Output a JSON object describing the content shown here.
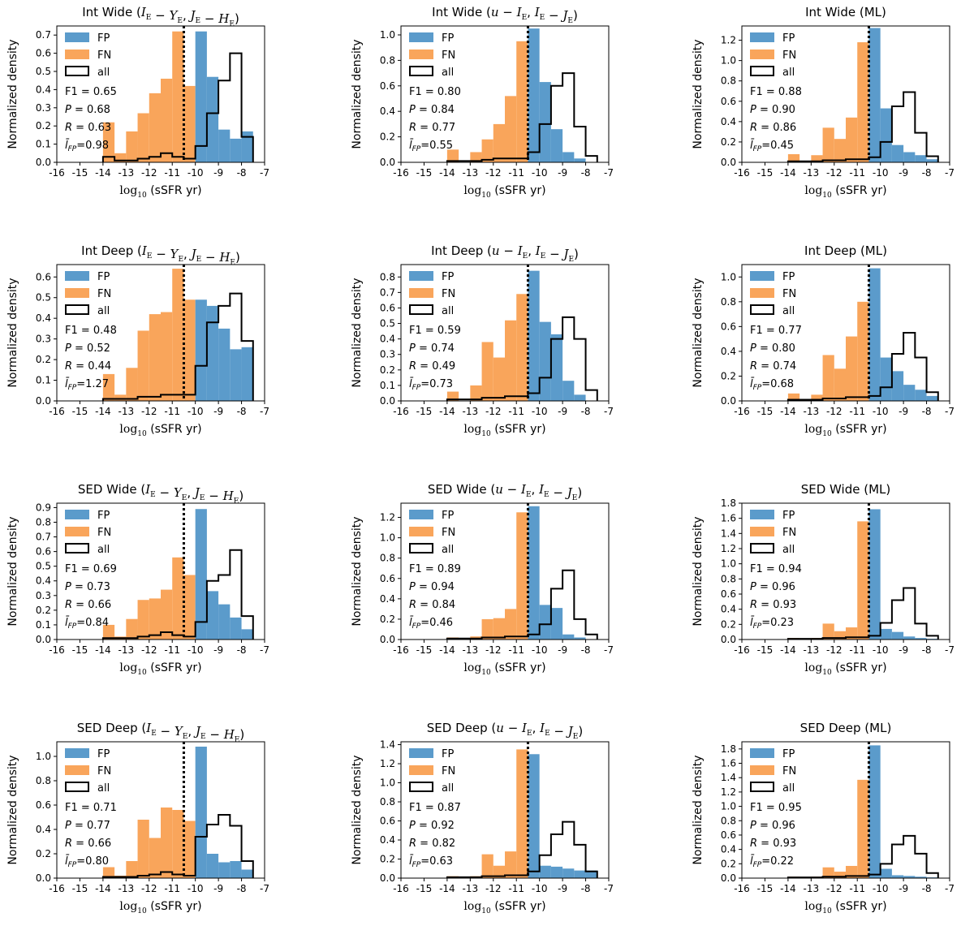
{
  "figure": {
    "shared_xlabel_prefix": "log",
    "shared_xlabel_sub": "10",
    "shared_xlabel_rest": "(sSFR yr)",
    "shared_ylabel": "Normalized density",
    "threshold_label": "log10 sSFR = -10.5",
    "legend_labels": {
      "fp": "FP",
      "fn": "FN",
      "all": "all"
    },
    "metric_labels": {
      "f1": "F1",
      "p": "P",
      "r": "R",
      "fp": "l̄_FP"
    }
  },
  "colors": {
    "fp": "#5b9bcb",
    "fn": "#f9a55b",
    "all": "#000000",
    "threshold": "#000000"
  },
  "chart_data": [
    {
      "type": "bar",
      "title_prefix": "Int Wide",
      "title_math": "(I_E − Y_E, J_E − H_E)",
      "xlim": [
        -16,
        -7
      ],
      "ylim": [
        0,
        0.75
      ],
      "yticks": [
        0,
        0.1,
        0.2,
        0.3,
        0.4,
        0.5,
        0.6,
        0.7
      ],
      "xticks": [
        -16,
        -15,
        -14,
        -13,
        -12,
        -11,
        -10,
        -9,
        -8,
        -7
      ],
      "bin_edges": [
        -14,
        -13.5,
        -13,
        -12.5,
        -12,
        -11.5,
        -11,
        -10.5,
        -10,
        -9.5,
        -9,
        -8.5,
        -8,
        -7.5
      ],
      "FN": [
        0.22,
        0.05,
        0.17,
        0.27,
        0.38,
        0.46,
        0.72,
        0.42,
        0,
        0,
        0,
        0,
        0
      ],
      "FP": [
        0,
        0,
        0,
        0,
        0,
        0,
        0,
        0,
        0.72,
        0.47,
        0.18,
        0.13,
        0.17
      ],
      "all": [
        0.03,
        0.01,
        0.01,
        0.02,
        0.03,
        0.05,
        0.03,
        0.02,
        0.09,
        0.27,
        0.45,
        0.6,
        0.14
      ],
      "threshold": -10.5,
      "metrics": {
        "F1": "0.65",
        "P": "0.68",
        "R": "0.63",
        "lFP": "0.98"
      }
    },
    {
      "type": "bar",
      "title_prefix": "Int Wide",
      "title_math": "(u − I_E, I_E − J_E)",
      "xlim": [
        -16,
        -7
      ],
      "ylim": [
        0,
        1.07
      ],
      "yticks": [
        0,
        0.2,
        0.4,
        0.6,
        0.8,
        1.0
      ],
      "xticks": [
        -16,
        -15,
        -14,
        -13,
        -12,
        -11,
        -10,
        -9,
        -8,
        -7
      ],
      "bin_edges": [
        -14,
        -13.5,
        -13,
        -12.5,
        -12,
        -11.5,
        -11,
        -10.5,
        -10,
        -9.5,
        -9,
        -8.5,
        -8,
        -7.5
      ],
      "FN": [
        0.1,
        0,
        0.08,
        0.18,
        0.3,
        0.52,
        0.95,
        0,
        0,
        0,
        0,
        0,
        0
      ],
      "FP": [
        0,
        0,
        0,
        0,
        0,
        0,
        0,
        1.05,
        0.63,
        0.26,
        0.08,
        0.03,
        0
      ],
      "all": [
        0.01,
        0.01,
        0.01,
        0.02,
        0.03,
        0.03,
        0.03,
        0.08,
        0.3,
        0.6,
        0.7,
        0.28,
        0.05
      ],
      "threshold": -10.5,
      "metrics": {
        "F1": "0.80",
        "P": "0.84",
        "R": "0.77",
        "lFP": "0.55"
      }
    },
    {
      "type": "bar",
      "title_prefix": "Int Wide",
      "title_math": "(ML)",
      "xlim": [
        -16,
        -7
      ],
      "ylim": [
        0,
        1.34
      ],
      "yticks": [
        0,
        0.2,
        0.4,
        0.6,
        0.8,
        1.0,
        1.2
      ],
      "xticks": [
        -16,
        -15,
        -14,
        -13,
        -12,
        -11,
        -10,
        -9,
        -8,
        -7
      ],
      "bin_edges": [
        -14,
        -13.5,
        -13,
        -12.5,
        -12,
        -11.5,
        -11,
        -10.5,
        -10,
        -9.5,
        -9,
        -8.5,
        -8,
        -7.5
      ],
      "FN": [
        0.08,
        0,
        0.07,
        0.34,
        0.23,
        0.44,
        1.18,
        0,
        0,
        0,
        0,
        0,
        0
      ],
      "FP": [
        0,
        0,
        0,
        0,
        0,
        0,
        0,
        1.32,
        0.53,
        0.17,
        0.1,
        0.07,
        0.03
      ],
      "all": [
        0.01,
        0.01,
        0.01,
        0.02,
        0.02,
        0.03,
        0.03,
        0.05,
        0.2,
        0.55,
        0.69,
        0.29,
        0.06
      ],
      "threshold": -10.5,
      "metrics": {
        "F1": "0.88",
        "P": "0.90",
        "R": "0.86",
        "lFP": "0.45"
      }
    },
    {
      "type": "bar",
      "title_prefix": "Int Deep",
      "title_math": "(I_E − Y_E, J_E − H_E)",
      "xlim": [
        -16,
        -7
      ],
      "ylim": [
        0,
        0.66
      ],
      "yticks": [
        0,
        0.1,
        0.2,
        0.3,
        0.4,
        0.5,
        0.6
      ],
      "xticks": [
        -16,
        -15,
        -14,
        -13,
        -12,
        -11,
        -10,
        -9,
        -8,
        -7
      ],
      "bin_edges": [
        -14,
        -13.5,
        -13,
        -12.5,
        -12,
        -11.5,
        -11,
        -10.5,
        -10,
        -9.5,
        -9,
        -8.5,
        -8,
        -7.5
      ],
      "FN": [
        0.13,
        0.03,
        0.16,
        0.34,
        0.42,
        0.43,
        0.64,
        0.49,
        0,
        0,
        0,
        0,
        0
      ],
      "FP": [
        0,
        0,
        0,
        0,
        0,
        0,
        0,
        0,
        0.49,
        0.46,
        0.35,
        0.25,
        0.26
      ],
      "all": [
        0.01,
        0.01,
        0.01,
        0.02,
        0.02,
        0.03,
        0.03,
        0.03,
        0.17,
        0.38,
        0.46,
        0.52,
        0.29
      ],
      "threshold": -10.5,
      "metrics": {
        "F1": "0.48",
        "P": "0.52",
        "R": "0.44",
        "lFP": "1.27"
      }
    },
    {
      "type": "bar",
      "title_prefix": "Int Deep",
      "title_math": "(u − I_E, I_E − J_E)",
      "xlim": [
        -16,
        -7
      ],
      "ylim": [
        0,
        0.88
      ],
      "yticks": [
        0,
        0.1,
        0.2,
        0.3,
        0.4,
        0.5,
        0.6,
        0.7,
        0.8
      ],
      "xticks": [
        -16,
        -15,
        -14,
        -13,
        -12,
        -11,
        -10,
        -9,
        -8,
        -7
      ],
      "bin_edges": [
        -14,
        -13.5,
        -13,
        -12.5,
        -12,
        -11.5,
        -11,
        -10.5,
        -10,
        -9.5,
        -9,
        -8.5,
        -8,
        -7.5
      ],
      "FN": [
        0.06,
        0,
        0.1,
        0.38,
        0.28,
        0.52,
        0.69,
        0,
        0,
        0,
        0,
        0,
        0
      ],
      "FP": [
        0,
        0,
        0,
        0,
        0,
        0,
        0,
        0.84,
        0.51,
        0.43,
        0.13,
        0.04,
        0
      ],
      "all": [
        0.01,
        0.01,
        0.01,
        0.02,
        0.02,
        0.03,
        0.03,
        0.05,
        0.15,
        0.4,
        0.54,
        0.4,
        0.07
      ],
      "threshold": -10.5,
      "metrics": {
        "F1": "0.59",
        "P": "0.74",
        "R": "0.49",
        "lFP": "0.73"
      }
    },
    {
      "type": "bar",
      "title_prefix": "Int Deep",
      "title_math": "(ML)",
      "xlim": [
        -16,
        -7
      ],
      "ylim": [
        0,
        1.1
      ],
      "yticks": [
        0,
        0.2,
        0.4,
        0.6,
        0.8,
        1.0
      ],
      "xticks": [
        -16,
        -15,
        -14,
        -13,
        -12,
        -11,
        -10,
        -9,
        -8,
        -7
      ],
      "bin_edges": [
        -14,
        -13.5,
        -13,
        -12.5,
        -12,
        -11.5,
        -11,
        -10.5,
        -10,
        -9.5,
        -9,
        -8.5,
        -8,
        -7.5
      ],
      "FN": [
        0.06,
        0,
        0.05,
        0.37,
        0.26,
        0.52,
        0.8,
        0,
        0,
        0,
        0,
        0,
        0
      ],
      "FP": [
        0,
        0,
        0,
        0,
        0,
        0,
        0,
        1.07,
        0.35,
        0.24,
        0.13,
        0.09,
        0.04
      ],
      "all": [
        0.01,
        0.01,
        0.01,
        0.02,
        0.02,
        0.03,
        0.03,
        0.04,
        0.11,
        0.38,
        0.55,
        0.35,
        0.07
      ],
      "threshold": -10.5,
      "metrics": {
        "F1": "0.77",
        "P": "0.80",
        "R": "0.74",
        "lFP": "0.68"
      }
    },
    {
      "type": "bar",
      "title_prefix": "SED Wide",
      "title_math": "(I_E − Y_E, J_E − H_E)",
      "xlim": [
        -16,
        -7
      ],
      "ylim": [
        0,
        0.93
      ],
      "yticks": [
        0,
        0.1,
        0.2,
        0.3,
        0.4,
        0.5,
        0.6,
        0.7,
        0.8,
        0.9
      ],
      "xticks": [
        -16,
        -15,
        -14,
        -13,
        -12,
        -11,
        -10,
        -9,
        -8,
        -7
      ],
      "bin_edges": [
        -14,
        -13.5,
        -13,
        -12.5,
        -12,
        -11.5,
        -11,
        -10.5,
        -10,
        -9.5,
        -9,
        -8.5,
        -8,
        -7.5
      ],
      "FN": [
        0.1,
        0.02,
        0.14,
        0.27,
        0.28,
        0.34,
        0.56,
        0.44,
        0,
        0,
        0,
        0,
        0
      ],
      "FP": [
        0,
        0,
        0,
        0,
        0,
        0,
        0,
        0,
        0.89,
        0.33,
        0.24,
        0.15,
        0.07
      ],
      "all": [
        0.01,
        0.01,
        0.01,
        0.02,
        0.03,
        0.05,
        0.03,
        0.02,
        0.12,
        0.4,
        0.44,
        0.61,
        0.16
      ],
      "threshold": -10.5,
      "metrics": {
        "F1": "0.69",
        "P": "0.73",
        "R": "0.66",
        "lFP": "0.84"
      }
    },
    {
      "type": "bar",
      "title_prefix": "SED Wide",
      "title_math": "(u − I_E, I_E − J_E)",
      "xlim": [
        -16,
        -7
      ],
      "ylim": [
        0,
        1.34
      ],
      "yticks": [
        0,
        0.2,
        0.4,
        0.6,
        0.8,
        1.0,
        1.2
      ],
      "xticks": [
        -16,
        -15,
        -14,
        -13,
        -12,
        -11,
        -10,
        -9,
        -8,
        -7
      ],
      "bin_edges": [
        -14,
        -13.5,
        -13,
        -12.5,
        -12,
        -11.5,
        -11,
        -10.5,
        -10,
        -9.5,
        -9,
        -8.5,
        -8,
        -7.5
      ],
      "FN": [
        0.02,
        0,
        0.03,
        0.2,
        0.21,
        0.3,
        1.25,
        0,
        0,
        0,
        0,
        0,
        0
      ],
      "FP": [
        0,
        0,
        0,
        0,
        0,
        0,
        0,
        1.31,
        0.34,
        0.31,
        0.05,
        0.02,
        0
      ],
      "all": [
        0.01,
        0.01,
        0.01,
        0.02,
        0.02,
        0.03,
        0.03,
        0.05,
        0.15,
        0.5,
        0.68,
        0.2,
        0.05
      ],
      "threshold": -10.5,
      "metrics": {
        "F1": "0.89",
        "P": "0.94",
        "R": "0.84",
        "lFP": "0.46"
      }
    },
    {
      "type": "bar",
      "title_prefix": "SED Wide",
      "title_math": "(ML)",
      "xlim": [
        -16,
        -7
      ],
      "ylim": [
        0,
        1.8
      ],
      "yticks": [
        0,
        0.2,
        0.4,
        0.6,
        0.8,
        1.0,
        1.2,
        1.4,
        1.6,
        1.8
      ],
      "xticks": [
        -16,
        -15,
        -14,
        -13,
        -12,
        -11,
        -10,
        -9,
        -8,
        -7
      ],
      "bin_edges": [
        -14,
        -13.5,
        -13,
        -12.5,
        -12,
        -11.5,
        -11,
        -10.5,
        -10,
        -9.5,
        -9,
        -8.5,
        -8,
        -7.5
      ],
      "FN": [
        0.02,
        0,
        0.02,
        0.21,
        0.11,
        0.16,
        1.56,
        0,
        0,
        0,
        0,
        0,
        0
      ],
      "FP": [
        0,
        0,
        0,
        0,
        0,
        0,
        0,
        1.72,
        0.14,
        0.1,
        0.04,
        0.02,
        0.01
      ],
      "all": [
        0.01,
        0.01,
        0.01,
        0.02,
        0.02,
        0.03,
        0.03,
        0.05,
        0.22,
        0.52,
        0.68,
        0.21,
        0.05
      ],
      "threshold": -10.5,
      "metrics": {
        "F1": "0.94",
        "P": "0.96",
        "R": "0.93",
        "lFP": "0.23"
      }
    },
    {
      "type": "bar",
      "title_prefix": "SED Deep",
      "title_math": "(I_E − Y_E, J_E − H_E)",
      "xlim": [
        -16,
        -7
      ],
      "ylim": [
        0,
        1.12
      ],
      "yticks": [
        0,
        0.2,
        0.4,
        0.6,
        0.8,
        1.0
      ],
      "xticks": [
        -16,
        -15,
        -14,
        -13,
        -12,
        -11,
        -10,
        -9,
        -8,
        -7
      ],
      "bin_edges": [
        -14,
        -13.5,
        -13,
        -12.5,
        -12,
        -11.5,
        -11,
        -10.5,
        -10,
        -9.5,
        -9,
        -8.5,
        -8,
        -7.5
      ],
      "FN": [
        0.09,
        0.02,
        0.14,
        0.48,
        0.33,
        0.58,
        0.56,
        0.47,
        0,
        0,
        0,
        0,
        0
      ],
      "FP": [
        0,
        0,
        0,
        0,
        0,
        0,
        0,
        0,
        1.08,
        0.2,
        0.13,
        0.14,
        0.07
      ],
      "all": [
        0.01,
        0.01,
        0.01,
        0.02,
        0.03,
        0.05,
        0.03,
        0.02,
        0.34,
        0.44,
        0.52,
        0.43,
        0.14
      ],
      "threshold": -10.5,
      "metrics": {
        "F1": "0.71",
        "P": "0.77",
        "R": "0.66",
        "lFP": "0.80"
      }
    },
    {
      "type": "bar",
      "title_prefix": "SED Deep",
      "title_math": "(u − I_E, I_E − J_E)",
      "xlim": [
        -16,
        -7
      ],
      "ylim": [
        0,
        1.43
      ],
      "yticks": [
        0,
        0.2,
        0.4,
        0.6,
        0.8,
        1.0,
        1.2,
        1.4
      ],
      "xticks": [
        -16,
        -15,
        -14,
        -13,
        -12,
        -11,
        -10,
        -9,
        -8,
        -7
      ],
      "bin_edges": [
        -14,
        -13.5,
        -13,
        -12.5,
        -12,
        -11.5,
        -11,
        -10.5,
        -10,
        -9.5,
        -9,
        -8.5,
        -8,
        -7.5
      ],
      "FN": [
        0.02,
        0,
        0.02,
        0.25,
        0.13,
        0.28,
        1.35,
        0,
        0,
        0,
        0,
        0,
        0
      ],
      "FP": [
        0,
        0,
        0,
        0,
        0,
        0,
        0,
        1.3,
        0.13,
        0.12,
        0.1,
        0.08,
        0.08
      ],
      "all": [
        0.01,
        0.01,
        0.01,
        0.02,
        0.02,
        0.03,
        0.03,
        0.07,
        0.24,
        0.46,
        0.59,
        0.35,
        0.07
      ],
      "threshold": -10.5,
      "metrics": {
        "F1": "0.87",
        "P": "0.92",
        "R": "0.82",
        "lFP": "0.63"
      }
    },
    {
      "type": "bar",
      "title_prefix": "SED Deep",
      "title_math": "(ML)",
      "xlim": [
        -16,
        -7
      ],
      "ylim": [
        0,
        1.9
      ],
      "yticks": [
        0,
        0.2,
        0.4,
        0.6,
        0.8,
        1.0,
        1.2,
        1.4,
        1.6,
        1.8
      ],
      "xticks": [
        -16,
        -15,
        -14,
        -13,
        -12,
        -11,
        -10,
        -9,
        -8,
        -7
      ],
      "bin_edges": [
        -14,
        -13.5,
        -13,
        -12.5,
        -12,
        -11.5,
        -11,
        -10.5,
        -10,
        -9.5,
        -9,
        -8.5,
        -8,
        -7.5
      ],
      "FN": [
        0.02,
        0,
        0.02,
        0.15,
        0.09,
        0.17,
        1.37,
        0,
        0,
        0,
        0,
        0,
        0
      ],
      "FP": [
        0,
        0,
        0,
        0,
        0,
        0,
        0,
        1.85,
        0.13,
        0.04,
        0.03,
        0.02,
        0.01
      ],
      "all": [
        0.01,
        0.01,
        0.01,
        0.02,
        0.02,
        0.03,
        0.03,
        0.05,
        0.2,
        0.47,
        0.59,
        0.34,
        0.07
      ],
      "threshold": -10.5,
      "metrics": {
        "F1": "0.95",
        "P": "0.96",
        "R": "0.93",
        "lFP": "0.22"
      }
    }
  ]
}
